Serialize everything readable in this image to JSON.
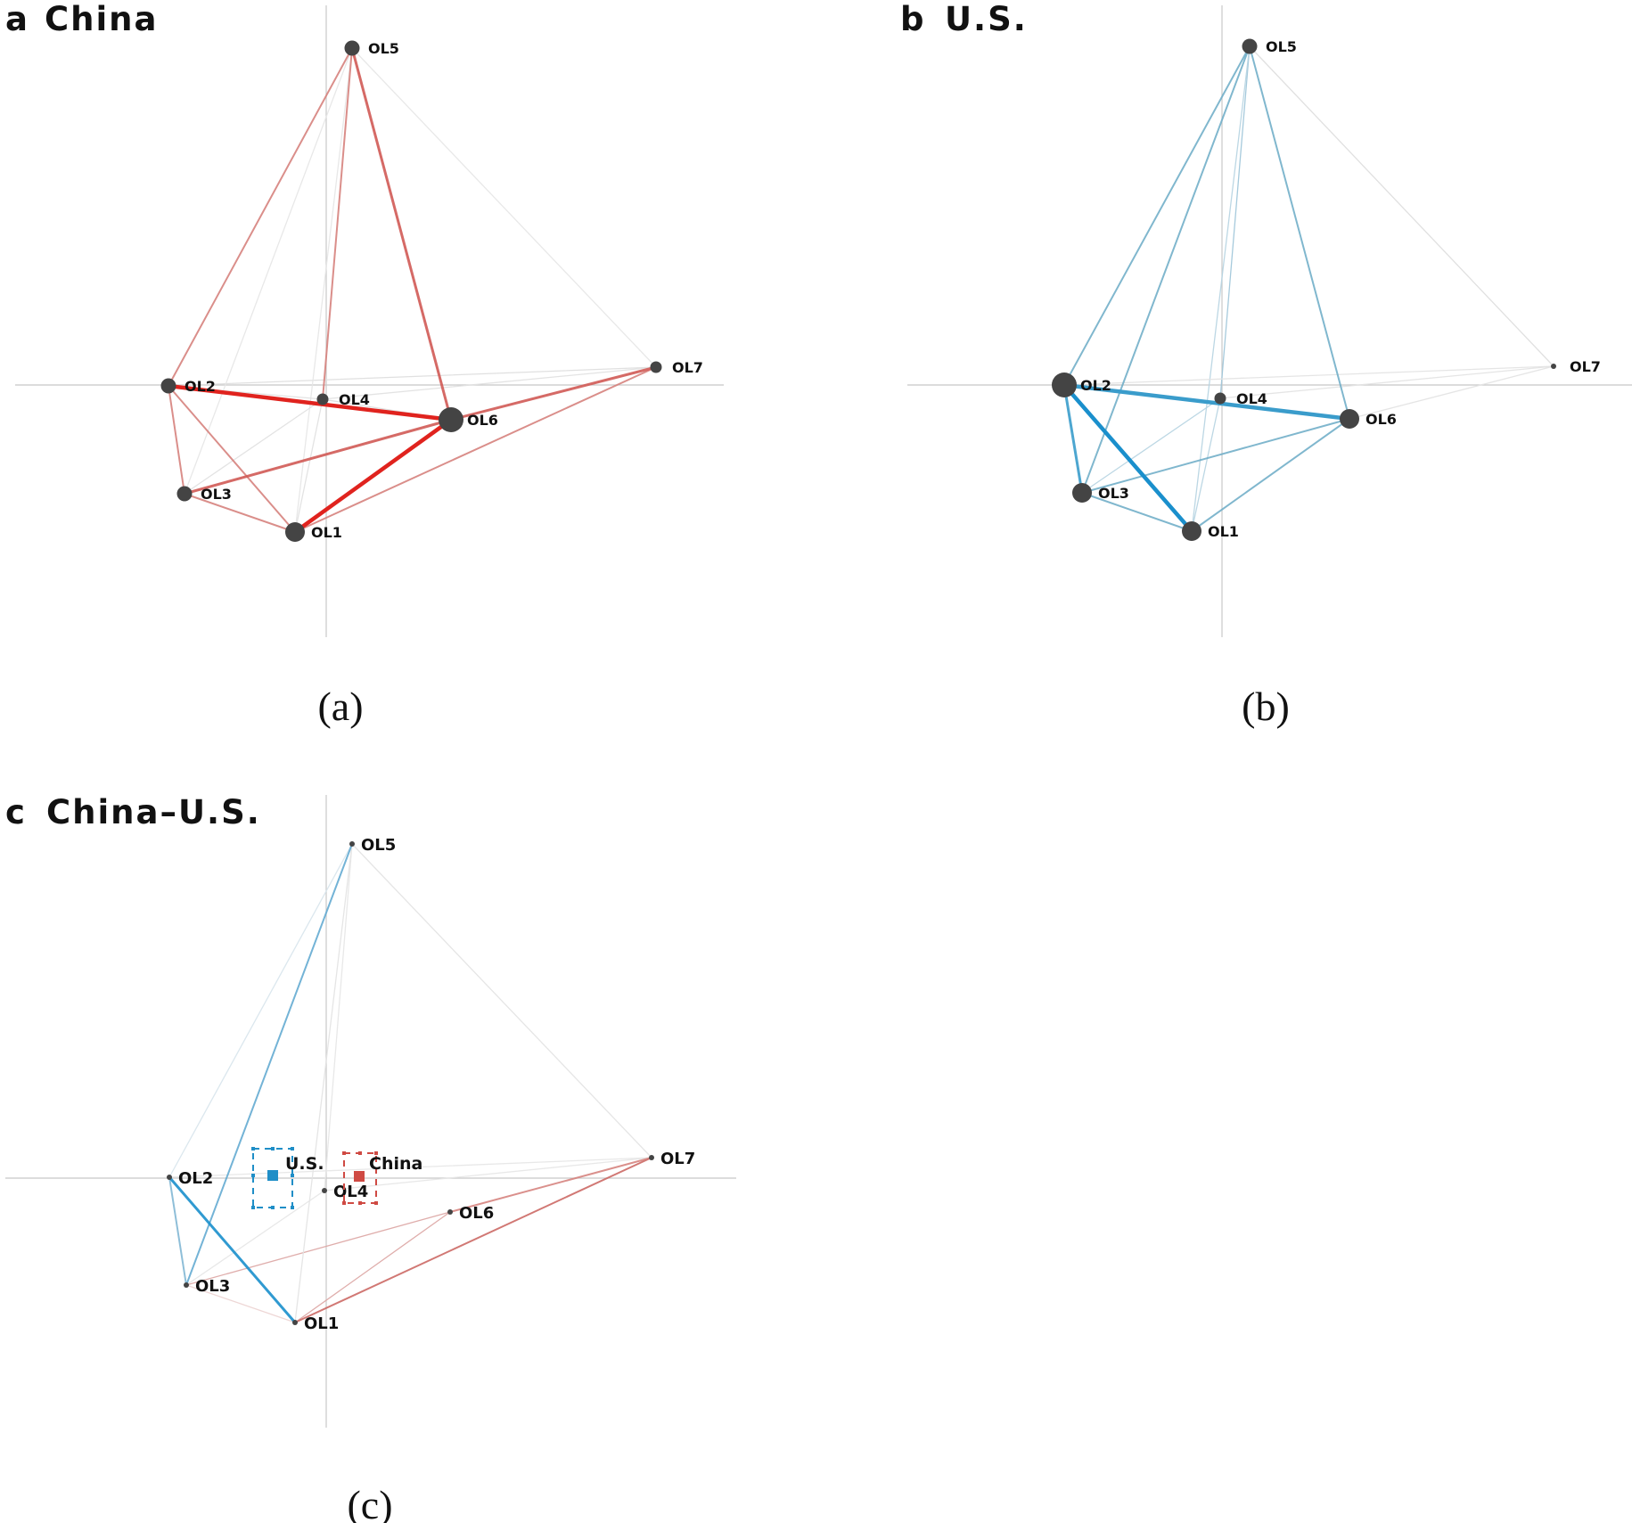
{
  "panels": [
    {
      "heading_letter": "a",
      "heading_title": "China",
      "caption": "(a)",
      "nodes": [
        {
          "id": "OL1",
          "label": "OL1",
          "size": "large"
        },
        {
          "id": "OL2",
          "label": "OL2",
          "size": "medium"
        },
        {
          "id": "OL3",
          "label": "OL3",
          "size": "medium"
        },
        {
          "id": "OL4",
          "label": "OL4",
          "size": "small"
        },
        {
          "id": "OL5",
          "label": "OL5",
          "size": "medium"
        },
        {
          "id": "OL6",
          "label": "OL6",
          "size": "xlarge"
        },
        {
          "id": "OL7",
          "label": "OL7",
          "size": "small"
        }
      ],
      "edges": [
        {
          "from": "OL1",
          "to": "OL6",
          "strength": "strong",
          "color": "#e0231e"
        },
        {
          "from": "OL2",
          "to": "OL6",
          "strength": "strong",
          "color": "#e0231e"
        },
        {
          "from": "OL3",
          "to": "OL6",
          "strength": "medium",
          "color": "#d05a55"
        },
        {
          "from": "OL5",
          "to": "OL6",
          "strength": "medium",
          "color": "#d05a55"
        },
        {
          "from": "OL6",
          "to": "OL7",
          "strength": "medium",
          "color": "#d05a55"
        },
        {
          "from": "OL1",
          "to": "OL7",
          "strength": "weak",
          "color": "#d37a76"
        },
        {
          "from": "OL2",
          "to": "OL5",
          "strength": "weak",
          "color": "#d37a76"
        },
        {
          "from": "OL4",
          "to": "OL5",
          "strength": "weak",
          "color": "#d37a76"
        },
        {
          "from": "OL2",
          "to": "OL3",
          "strength": "weak",
          "color": "#d37a76"
        },
        {
          "from": "OL2",
          "to": "OL1",
          "strength": "weak",
          "color": "#d37a76"
        },
        {
          "from": "OL3",
          "to": "OL1",
          "strength": "weak",
          "color": "#d37a76"
        },
        {
          "from": "OL4",
          "to": "OL6",
          "strength": "faint",
          "color": "#dddddd"
        },
        {
          "from": "OL2",
          "to": "OL7",
          "strength": "faint",
          "color": "#dddddd"
        },
        {
          "from": "OL5",
          "to": "OL7",
          "strength": "faint",
          "color": "#e6e6e6"
        },
        {
          "from": "OL3",
          "to": "OL5",
          "strength": "faint",
          "color": "#e6e6e6"
        },
        {
          "from": "OL1",
          "to": "OL5",
          "strength": "faint",
          "color": "#e6e6e6"
        },
        {
          "from": "OL3",
          "to": "OL4",
          "strength": "faint",
          "color": "#e0e0e0"
        },
        {
          "from": "OL1",
          "to": "OL4",
          "strength": "faint",
          "color": "#e0e0e0"
        },
        {
          "from": "OL4",
          "to": "OL7",
          "strength": "faint",
          "color": "#e0e0e0"
        },
        {
          "from": "OL2",
          "to": "OL4",
          "strength": "faint",
          "color": "#e0e0e0"
        }
      ]
    },
    {
      "heading_letter": "b",
      "heading_title": "U.S.",
      "caption": "(b)",
      "nodes": [
        {
          "id": "OL1",
          "label": "OL1",
          "size": "large"
        },
        {
          "id": "OL2",
          "label": "OL2",
          "size": "xlarge"
        },
        {
          "id": "OL3",
          "label": "OL3",
          "size": "large"
        },
        {
          "id": "OL4",
          "label": "OL4",
          "size": "small"
        },
        {
          "id": "OL5",
          "label": "OL5",
          "size": "medium"
        },
        {
          "id": "OL6",
          "label": "OL6",
          "size": "large"
        },
        {
          "id": "OL7",
          "label": "OL7",
          "size": "tiny"
        }
      ],
      "edges": [
        {
          "from": "OL2",
          "to": "OL1",
          "strength": "strong",
          "color": "#1a8fcc"
        },
        {
          "from": "OL2",
          "to": "OL6",
          "strength": "strong",
          "color": "#3a9ccb"
        },
        {
          "from": "OL2",
          "to": "OL3",
          "strength": "medium",
          "color": "#3a9ccb"
        },
        {
          "from": "OL2",
          "to": "OL5",
          "strength": "weak",
          "color": "#6aaac5"
        },
        {
          "from": "OL3",
          "to": "OL5",
          "strength": "weak",
          "color": "#6aaac5"
        },
        {
          "from": "OL5",
          "to": "OL6",
          "strength": "weak",
          "color": "#6aaac5"
        },
        {
          "from": "OL3",
          "to": "OL6",
          "strength": "weak",
          "color": "#6aaac5"
        },
        {
          "from": "OL1",
          "to": "OL6",
          "strength": "weak",
          "color": "#6aaac5"
        },
        {
          "from": "OL3",
          "to": "OL1",
          "strength": "weak",
          "color": "#6aaac5"
        },
        {
          "from": "OL4",
          "to": "OL5",
          "strength": "faint",
          "color": "#9cc4d8"
        },
        {
          "from": "OL1",
          "to": "OL5",
          "strength": "faint",
          "color": "#b5d3e1"
        },
        {
          "from": "OL1",
          "to": "OL4",
          "strength": "faint",
          "color": "#b5d3e1"
        },
        {
          "from": "OL3",
          "to": "OL4",
          "strength": "faint",
          "color": "#b5d3e1"
        },
        {
          "from": "OL5",
          "to": "OL7",
          "strength": "faint",
          "color": "#dddddd"
        },
        {
          "from": "OL2",
          "to": "OL7",
          "strength": "faint",
          "color": "#e2e2e2"
        },
        {
          "from": "OL4",
          "to": "OL7",
          "strength": "faint",
          "color": "#e2e2e2"
        },
        {
          "from": "OL6",
          "to": "OL7",
          "strength": "faint",
          "color": "#e2e2e2"
        }
      ]
    },
    {
      "heading_letter": "c",
      "heading_title": "China–U.S.",
      "caption": "(c)",
      "nodes": [
        {
          "id": "OL1",
          "label": "OL1",
          "size": "tiny"
        },
        {
          "id": "OL2",
          "label": "OL2",
          "size": "tiny"
        },
        {
          "id": "OL3",
          "label": "OL3",
          "size": "tiny"
        },
        {
          "id": "OL4",
          "label": "OL4",
          "size": "tiny"
        },
        {
          "id": "OL5",
          "label": "OL5",
          "size": "tiny"
        },
        {
          "id": "OL6",
          "label": "OL6",
          "size": "tiny"
        },
        {
          "id": "OL7",
          "label": "OL7",
          "size": "tiny"
        }
      ],
      "edges": [
        {
          "from": "OL2",
          "to": "OL1",
          "strength": "medium",
          "color": "#1a8fcc"
        },
        {
          "from": "OL3",
          "to": "OL5",
          "strength": "weak",
          "color": "#5aa6cf"
        },
        {
          "from": "OL2",
          "to": "OL3",
          "strength": "weak",
          "color": "#7ab3d1"
        },
        {
          "from": "OL1",
          "to": "OL7",
          "strength": "weak",
          "color": "#c9605c"
        },
        {
          "from": "OL6",
          "to": "OL7",
          "strength": "weak",
          "color": "#d47c78"
        },
        {
          "from": "OL1",
          "to": "OL6",
          "strength": "faint",
          "color": "#dca4a2"
        },
        {
          "from": "OL3",
          "to": "OL6",
          "strength": "faint",
          "color": "#dca4a2"
        },
        {
          "from": "OL2",
          "to": "OL5",
          "strength": "faint",
          "color": "#d7e4ec"
        },
        {
          "from": "OL5",
          "to": "OL7",
          "strength": "faint",
          "color": "#e2e2e2"
        },
        {
          "from": "OL1",
          "to": "OL5",
          "strength": "faint",
          "color": "#e2e2e2"
        },
        {
          "from": "OL4",
          "to": "OL5",
          "strength": "faint",
          "color": "#e6e6e6"
        },
        {
          "from": "OL3",
          "to": "OL1",
          "strength": "faint",
          "color": "#ecd3d2"
        },
        {
          "from": "OL2",
          "to": "OL7",
          "strength": "faint",
          "color": "#e6e6e6"
        },
        {
          "from": "OL3",
          "to": "OL4",
          "strength": "faint",
          "color": "#e6e6e6"
        },
        {
          "from": "OL4",
          "to": "OL7",
          "strength": "faint",
          "color": "#e6e6e6"
        }
      ],
      "legend": [
        {
          "label": "U.S.",
          "color": "#1f8ec7"
        },
        {
          "label": "China",
          "color": "#cf4a43"
        }
      ]
    }
  ],
  "colors": {
    "axis": "#c8c8c8",
    "node": "#444444"
  }
}
